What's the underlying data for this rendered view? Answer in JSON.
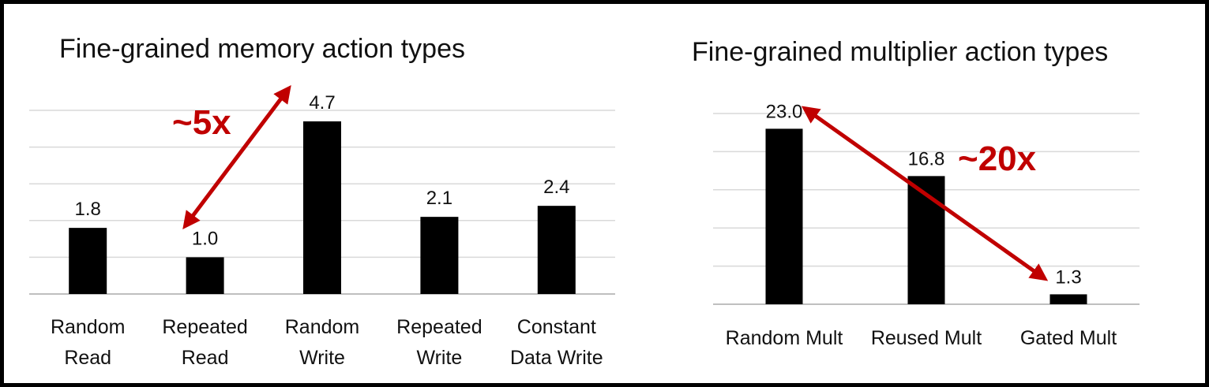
{
  "colors": {
    "bar": "#000000",
    "grid": "#d9d9d9",
    "accent": "#c00000"
  },
  "chart_data": [
    {
      "type": "bar",
      "title": "Fine-grained memory action types",
      "categories": [
        [
          "Random",
          "Read"
        ],
        [
          "Repeated",
          "Read"
        ],
        [
          "Random",
          "Write"
        ],
        [
          "Repeated",
          "Write"
        ],
        [
          "Constant",
          "Data Write"
        ]
      ],
      "values": [
        1.8,
        1.0,
        4.7,
        2.1,
        2.4
      ],
      "value_labels": [
        "1.8",
        "1.0",
        "4.7",
        "2.1",
        "2.4"
      ],
      "ylim": [
        0,
        5
      ],
      "grid": true,
      "annotation": {
        "text": "~5x",
        "arrow_from": "Repeated Read",
        "arrow_to": "Random Write"
      }
    },
    {
      "type": "bar",
      "title": "Fine-grained multiplier action types",
      "categories": [
        [
          "Random Mult"
        ],
        [
          "Reused Mult"
        ],
        [
          "Gated Mult"
        ]
      ],
      "values": [
        23.0,
        16.8,
        1.3
      ],
      "value_labels": [
        "23.0",
        "16.8",
        "1.3"
      ],
      "ylim": [
        0,
        25
      ],
      "grid": true,
      "annotation": {
        "text": "~20x",
        "arrow_from": "Random Mult",
        "arrow_to": "Gated Mult"
      }
    }
  ]
}
